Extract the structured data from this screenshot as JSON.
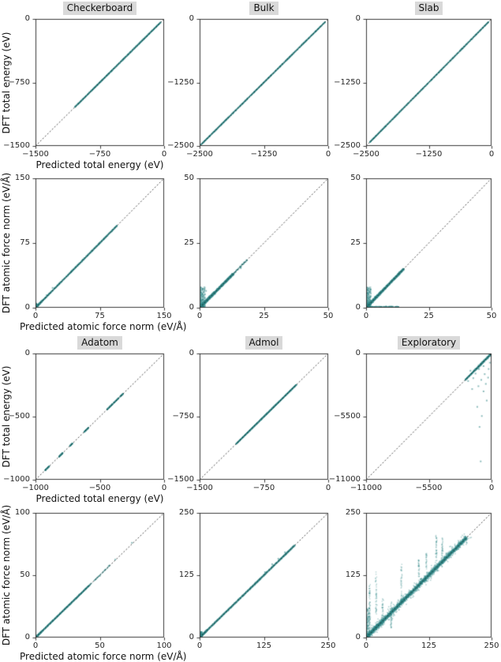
{
  "figure": {
    "background": "#ffffff"
  },
  "colors": {
    "scatter": "#2f8585",
    "identity_line": "#1a1a1a",
    "spine": "#262626",
    "tick": "#262626",
    "title_bg": "#d9d9d9",
    "title_text": "#111111"
  },
  "chart_data": [
    {
      "id": "checkerboard-energy",
      "type": "scatter",
      "title": "Checkerboard",
      "xlabel": "Predicted total energy (eV)",
      "ylabel": "DFT total energy (eV)",
      "xlim": [
        -1500,
        0
      ],
      "ylim": [
        -1500,
        0
      ],
      "xticks": [
        -1500,
        -750,
        0
      ],
      "yticks": [
        -1500,
        -750,
        0
      ],
      "identity_line": true,
      "grid": false,
      "scatter_groups": [
        {
          "kind": "diagonal",
          "from": -1040,
          "to": -40,
          "n": 1400,
          "spread": 3
        }
      ],
      "outliers": []
    },
    {
      "id": "bulk-energy",
      "type": "scatter",
      "title": "Bulk",
      "xlabel": "",
      "ylabel": "",
      "xlim": [
        -2500,
        0
      ],
      "ylim": [
        -2500,
        0
      ],
      "xticks": [
        -2500,
        -1250,
        0
      ],
      "yticks": [
        -2500,
        -1250,
        0
      ],
      "identity_line": true,
      "grid": false,
      "scatter_groups": [
        {
          "kind": "diagonal",
          "from": -2480,
          "to": -60,
          "n": 1600,
          "spread": 5
        }
      ],
      "outliers": []
    },
    {
      "id": "slab-energy",
      "type": "scatter",
      "title": "Slab",
      "xlabel": "",
      "ylabel": "",
      "xlim": [
        -2500,
        0
      ],
      "ylim": [
        -2500,
        0
      ],
      "xticks": [
        -2500,
        -1250,
        0
      ],
      "yticks": [
        -2500,
        -1250,
        0
      ],
      "identity_line": true,
      "grid": false,
      "scatter_groups": [
        {
          "kind": "diagonal",
          "from": -2430,
          "to": -60,
          "n": 1400,
          "spread": 5
        }
      ],
      "outliers": []
    },
    {
      "id": "checkerboard-force",
      "type": "scatter",
      "title": null,
      "xlabel": "Predicted atomic force norm (eV/Å)",
      "ylabel": "DFT atomic force norm (eV/Å)",
      "xlim": [
        0,
        150
      ],
      "ylim": [
        0,
        150
      ],
      "xticks": [
        0,
        75,
        150
      ],
      "yticks": [
        0,
        75,
        150
      ],
      "identity_line": true,
      "grid": false,
      "scatter_groups": [
        {
          "kind": "diagonal",
          "from": 0,
          "to": 95,
          "n": 1200,
          "spread": 0.7
        },
        {
          "kind": "origin",
          "max": 8,
          "n": 700,
          "spread": 0.9
        },
        {
          "kind": "vfan",
          "xmax": 1.5,
          "ymax": 5,
          "n": 150
        }
      ],
      "outliers": [
        [
          20,
          23
        ],
        [
          13,
          14.5
        ]
      ]
    },
    {
      "id": "bulk-force",
      "type": "scatter",
      "title": null,
      "xlabel": "",
      "ylabel": "",
      "xlim": [
        0,
        50
      ],
      "ylim": [
        0,
        50
      ],
      "xticks": [
        0,
        25,
        50
      ],
      "yticks": [
        0,
        25,
        50
      ],
      "identity_line": true,
      "grid": false,
      "scatter_groups": [
        {
          "kind": "diagonal",
          "from": 0,
          "to": 13,
          "n": 1600,
          "spread": 0.55
        },
        {
          "kind": "diagonal",
          "from": 13,
          "to": 18.5,
          "n": 80,
          "spread": 0.4
        },
        {
          "kind": "origin",
          "max": 6,
          "n": 900,
          "spread": 1.1
        },
        {
          "kind": "vfan",
          "xmax": 2.2,
          "ymax": 8,
          "n": 350
        }
      ],
      "outliers": [
        [
          2.5,
          6.5
        ],
        [
          1.2,
          7.2
        ],
        [
          16,
          15.3
        ]
      ]
    },
    {
      "id": "slab-force",
      "type": "scatter",
      "title": null,
      "xlabel": "",
      "ylabel": "",
      "xlim": [
        0,
        50
      ],
      "ylim": [
        0,
        50
      ],
      "xticks": [
        0,
        25,
        50
      ],
      "yticks": [
        0,
        25,
        50
      ],
      "identity_line": true,
      "grid": false,
      "scatter_groups": [
        {
          "kind": "diagonal",
          "from": 0,
          "to": 15,
          "n": 1600,
          "spread": 0.5
        },
        {
          "kind": "origin",
          "max": 6,
          "n": 900,
          "spread": 1.0
        },
        {
          "kind": "vfan",
          "xmax": 2.0,
          "ymax": 8,
          "n": 400
        },
        {
          "kind": "floor",
          "from": 0,
          "to": 13,
          "n": 300,
          "height": 0.5
        }
      ],
      "outliers": []
    },
    {
      "id": "adatom-energy",
      "type": "scatter",
      "title": "Adatom",
      "xlabel": "Predicted total energy (eV)",
      "ylabel": "DFT total energy (eV)",
      "xlim": [
        -1000,
        0
      ],
      "ylim": [
        -1000,
        0
      ],
      "xticks": [
        -1000,
        -500,
        0
      ],
      "yticks": [
        -1000,
        -500,
        0
      ],
      "identity_line": true,
      "grid": false,
      "scatter_groups": [
        {
          "kind": "diagonal",
          "from": -925,
          "to": -893,
          "n": 120,
          "spread": 1.2
        },
        {
          "kind": "diagonal",
          "from": -818,
          "to": -788,
          "n": 120,
          "spread": 1.2
        },
        {
          "kind": "diagonal",
          "from": -733,
          "to": -712,
          "n": 80,
          "spread": 1.2
        },
        {
          "kind": "diagonal",
          "from": -622,
          "to": -588,
          "n": 120,
          "spread": 1.2
        },
        {
          "kind": "diagonal",
          "from": -445,
          "to": -398,
          "n": 140,
          "spread": 1.2
        },
        {
          "kind": "diagonal",
          "from": -392,
          "to": -352,
          "n": 120,
          "spread": 1.2
        },
        {
          "kind": "diagonal",
          "from": -342,
          "to": -318,
          "n": 100,
          "spread": 1.2
        }
      ],
      "outliers": []
    },
    {
      "id": "admol-energy",
      "type": "scatter",
      "title": "Admol",
      "xlabel": "",
      "ylabel": "",
      "xlim": [
        -1500,
        0
      ],
      "ylim": [
        -1500,
        0
      ],
      "xticks": [
        -1500,
        -750,
        0
      ],
      "yticks": [
        -1500,
        -750,
        0
      ],
      "identity_line": true,
      "grid": false,
      "scatter_groups": [
        {
          "kind": "diagonal",
          "from": -1075,
          "to": -372,
          "n": 1500,
          "spread": 2.5
        }
      ],
      "outliers": []
    },
    {
      "id": "exploratory-energy",
      "type": "scatter",
      "title": "Exploratory",
      "xlabel": "",
      "ylabel": "",
      "xlim": [
        -11000,
        0
      ],
      "ylim": [
        -11000,
        0
      ],
      "xticks": [
        -11000,
        -5500,
        0
      ],
      "yticks": [
        -11000,
        -5500,
        0
      ],
      "identity_line": true,
      "grid": false,
      "scatter_groups": [
        {
          "kind": "diagonal",
          "from": -2300,
          "to": -30,
          "n": 1200,
          "spread": 40,
          "bias": 2.0
        },
        {
          "kind": "diagonal",
          "from": -1500,
          "to": -200,
          "n": 100,
          "spread": 150
        }
      ],
      "outliers": [
        [
          -600,
          -1800
        ],
        [
          -900,
          -2300
        ],
        [
          -1150,
          -2850
        ],
        [
          -700,
          -3300
        ],
        [
          -1400,
          -1750
        ],
        [
          -1850,
          -1500
        ],
        [
          -500,
          -2650
        ],
        [
          -1250,
          -4650
        ],
        [
          -850,
          -5450
        ],
        [
          -1050,
          -6400
        ],
        [
          -950,
          -9400
        ],
        [
          -250,
          -1350
        ],
        [
          -1600,
          -2150
        ],
        [
          -420,
          -4100
        ],
        [
          -300,
          -2100
        ],
        [
          -1100,
          -1350
        ],
        [
          -2050,
          -2400
        ],
        [
          -150,
          -800
        ],
        [
          -700,
          -1100
        ],
        [
          -1700,
          -3100
        ]
      ]
    },
    {
      "id": "adatom-force",
      "type": "scatter",
      "title": null,
      "xlabel": "Predicted atomic force norm (eV/Å)",
      "ylabel": "DFT atomic force norm (eV/Å)",
      "xlim": [
        0,
        100
      ],
      "ylim": [
        0,
        100
      ],
      "xticks": [
        0,
        50,
        100
      ],
      "yticks": [
        0,
        50,
        100
      ],
      "identity_line": true,
      "grid": false,
      "scatter_groups": [
        {
          "kind": "diagonal",
          "from": 0,
          "to": 42,
          "n": 1100,
          "spread": 0.4
        },
        {
          "kind": "diagonal",
          "from": 42,
          "to": 58,
          "n": 60,
          "spread": 0.35
        },
        {
          "kind": "origin",
          "max": 5,
          "n": 500,
          "spread": 0.6
        }
      ],
      "outliers": [
        [
          75,
          76
        ],
        [
          62,
          62.5
        ],
        [
          50,
          49.5
        ],
        [
          57,
          57.5
        ]
      ]
    },
    {
      "id": "admol-force",
      "type": "scatter",
      "title": null,
      "xlabel": "",
      "ylabel": "",
      "xlim": [
        0,
        250
      ],
      "ylim": [
        0,
        250
      ],
      "xticks": [
        0,
        125,
        250
      ],
      "yticks": [
        0,
        125,
        250
      ],
      "identity_line": true,
      "grid": false,
      "scatter_groups": [
        {
          "kind": "diagonal",
          "from": 0,
          "to": 185,
          "n": 1600,
          "spread": 1.6
        },
        {
          "kind": "origin",
          "max": 15,
          "n": 700,
          "spread": 2.2
        },
        {
          "kind": "vfan",
          "xmax": 5,
          "ymax": 12,
          "n": 200
        }
      ],
      "outliers": [
        [
          141,
          147
        ],
        [
          153,
          158
        ],
        [
          166,
          171
        ],
        [
          127,
          131
        ]
      ]
    },
    {
      "id": "exploratory-force",
      "type": "scatter",
      "title": null,
      "xlabel": "",
      "ylabel": "",
      "xlim": [
        0,
        250
      ],
      "ylim": [
        0,
        250
      ],
      "xticks": [
        0,
        125,
        250
      ],
      "yticks": [
        0,
        125,
        250
      ],
      "identity_line": true,
      "grid": false,
      "scatter_groups": [
        {
          "kind": "diagonal",
          "from": 0,
          "to": 200,
          "n": 3000,
          "spread": 5
        },
        {
          "kind": "diagonal",
          "from": 0,
          "to": 200,
          "n": 700,
          "spread": 14
        },
        {
          "kind": "origin",
          "max": 30,
          "n": 700,
          "spread": 7
        },
        {
          "kind": "vfan",
          "xmax": 8,
          "ymax": 60,
          "n": 250
        },
        {
          "kind": "streak",
          "x": 7,
          "ymin": 30,
          "ymax": 108,
          "n": 50
        },
        {
          "kind": "streak",
          "x": 20,
          "ymin": 45,
          "ymax": 135,
          "n": 45
        },
        {
          "kind": "streak",
          "x": 33,
          "ymin": 25,
          "ymax": 80,
          "n": 35
        },
        {
          "kind": "streak",
          "x": 50,
          "ymin": 18,
          "ymax": 72,
          "n": 40
        },
        {
          "kind": "streak",
          "x": 70,
          "ymin": 60,
          "ymax": 148,
          "n": 40
        },
        {
          "kind": "streak",
          "x": 105,
          "ymin": 115,
          "ymax": 158,
          "n": 30
        },
        {
          "kind": "streak",
          "x": 120,
          "ymin": 130,
          "ymax": 170,
          "n": 25
        },
        {
          "kind": "streak",
          "x": 140,
          "ymin": 150,
          "ymax": 207,
          "n": 40
        },
        {
          "kind": "streak",
          "x": 152,
          "ymin": 160,
          "ymax": 200,
          "n": 30
        }
      ],
      "outliers": []
    }
  ]
}
